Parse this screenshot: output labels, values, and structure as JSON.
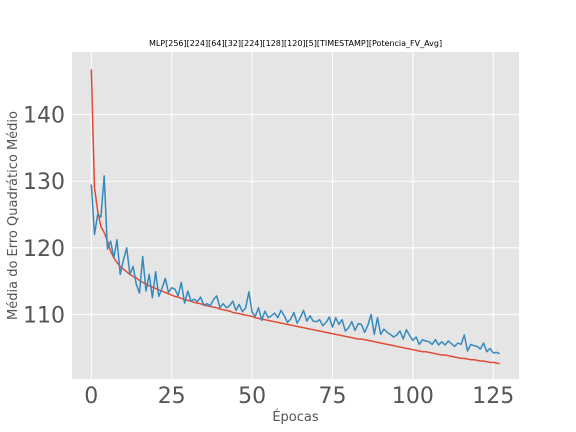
{
  "chart_data": {
    "type": "line",
    "title": "MLP[256][224][64][32][224][128][120][5][TIMESTAMP][Potencia_FV_Avg]",
    "xlabel": "Épocas",
    "ylabel": "Média do Erro Quadrático Médio",
    "xlim": [
      -6,
      133
    ],
    "ylim": [
      100.3,
      149.4
    ],
    "xticks": [
      0,
      25,
      50,
      75,
      100,
      125
    ],
    "yticks": [
      110,
      120,
      130,
      140
    ],
    "grid": true,
    "legend": "none",
    "series": [
      {
        "color": "#E24A33",
        "x": [
          0,
          1,
          2,
          3,
          4,
          5,
          6,
          7,
          8,
          9,
          10,
          11,
          12,
          13,
          14,
          15,
          16,
          17,
          18,
          19,
          20,
          21,
          22,
          23,
          24,
          25,
          26,
          27,
          28,
          29,
          30,
          31,
          32,
          33,
          34,
          35,
          36,
          37,
          38,
          39,
          40,
          41,
          42,
          43,
          44,
          45,
          46,
          47,
          48,
          49,
          50,
          51,
          52,
          53,
          54,
          55,
          56,
          57,
          58,
          59,
          60,
          61,
          62,
          63,
          64,
          65,
          66,
          67,
          68,
          69,
          70,
          71,
          72,
          73,
          74,
          75,
          76,
          77,
          78,
          79,
          80,
          81,
          82,
          83,
          84,
          85,
          86,
          87,
          88,
          89,
          90,
          91,
          92,
          93,
          94,
          95,
          96,
          97,
          98,
          99,
          100,
          101,
          102,
          103,
          104,
          105,
          106,
          107,
          108,
          109,
          110,
          111,
          112,
          113,
          114,
          115,
          116,
          117,
          118,
          119,
          120,
          121,
          122,
          123,
          124,
          125,
          126,
          127
        ],
        "values": [
          146.8,
          129.0,
          125.5,
          123.2,
          122.3,
          121.0,
          119.5,
          118.5,
          117.8,
          117.2,
          116.8,
          116.4,
          116.0,
          115.7,
          115.5,
          115.1,
          114.8,
          114.6,
          114.3,
          114.1,
          113.9,
          113.7,
          113.5,
          113.3,
          113.1,
          112.9,
          112.7,
          112.6,
          112.4,
          112.2,
          112.1,
          112.0,
          111.8,
          111.7,
          111.6,
          111.4,
          111.3,
          111.2,
          111.1,
          111.0,
          110.8,
          110.7,
          110.6,
          110.5,
          110.3,
          110.2,
          110.1,
          110.0,
          109.9,
          109.8,
          109.7,
          109.5,
          109.4,
          109.3,
          109.2,
          109.1,
          109.0,
          108.9,
          108.8,
          108.7,
          108.6,
          108.5,
          108.4,
          108.3,
          108.2,
          108.1,
          108.0,
          107.9,
          107.8,
          107.7,
          107.6,
          107.5,
          107.4,
          107.3,
          107.2,
          107.1,
          107.0,
          106.9,
          106.8,
          106.7,
          106.6,
          106.5,
          106.4,
          106.3,
          106.3,
          106.2,
          106.1,
          106.0,
          105.9,
          105.8,
          105.7,
          105.6,
          105.5,
          105.4,
          105.3,
          105.2,
          105.1,
          105.0,
          104.9,
          104.8,
          104.7,
          104.6,
          104.5,
          104.4,
          104.4,
          104.3,
          104.2,
          104.1,
          104.0,
          103.9,
          103.9,
          103.8,
          103.7,
          103.6,
          103.5,
          103.4,
          103.4,
          103.3,
          103.2,
          103.2,
          103.1,
          103.0,
          103.0,
          102.9,
          102.8,
          102.8,
          102.7,
          102.6
        ]
      },
      {
        "color": "#348ABD",
        "x": [
          0,
          1,
          2,
          3,
          4,
          5,
          6,
          7,
          8,
          9,
          10,
          11,
          12,
          13,
          14,
          15,
          16,
          17,
          18,
          19,
          20,
          21,
          22,
          23,
          24,
          25,
          26,
          27,
          28,
          29,
          30,
          31,
          32,
          33,
          34,
          35,
          36,
          37,
          38,
          39,
          40,
          41,
          42,
          43,
          44,
          45,
          46,
          47,
          48,
          49,
          50,
          51,
          52,
          53,
          54,
          55,
          56,
          57,
          58,
          59,
          60,
          61,
          62,
          63,
          64,
          65,
          66,
          67,
          68,
          69,
          70,
          71,
          72,
          73,
          74,
          75,
          76,
          77,
          78,
          79,
          80,
          81,
          82,
          83,
          84,
          85,
          86,
          87,
          88,
          89,
          90,
          91,
          92,
          93,
          94,
          95,
          96,
          97,
          98,
          99,
          100,
          101,
          102,
          103,
          104,
          105,
          106,
          107,
          108,
          109,
          110,
          111,
          112,
          113,
          114,
          115,
          116,
          117,
          118,
          119,
          120,
          121,
          122,
          123,
          124,
          125,
          126,
          127
        ],
        "values": [
          129.5,
          122.0,
          125.0,
          124.6,
          130.8,
          119.8,
          121.0,
          118.5,
          121.2,
          116.0,
          118.2,
          120.0,
          116.0,
          117.2,
          114.5,
          113.2,
          118.7,
          113.5,
          116.0,
          112.5,
          116.4,
          112.7,
          113.9,
          115.4,
          113.3,
          114.0,
          113.8,
          112.8,
          114.8,
          111.7,
          113.5,
          112.0,
          112.3,
          111.9,
          112.6,
          111.4,
          111.6,
          111.3,
          112.2,
          112.8,
          111.0,
          111.6,
          111.0,
          111.3,
          112.0,
          110.6,
          111.5,
          110.4,
          111.0,
          113.4,
          110.3,
          109.7,
          111.0,
          109.1,
          110.5,
          109.5,
          109.8,
          110.2,
          109.5,
          110.6,
          109.8,
          108.8,
          109.3,
          110.3,
          108.7,
          109.5,
          110.6,
          109.0,
          109.8,
          109.0,
          108.9,
          109.2,
          108.3,
          108.8,
          109.6,
          108.1,
          109.5,
          108.5,
          109.2,
          107.5,
          108.0,
          108.9,
          107.6,
          108.6,
          108.5,
          107.3,
          108.4,
          110.0,
          107.0,
          109.5,
          107.0,
          107.8,
          107.3,
          107.0,
          106.6,
          106.9,
          107.5,
          106.3,
          107.7,
          106.8,
          106.1,
          106.6,
          105.5,
          106.2,
          106.0,
          105.9,
          105.5,
          106.2,
          105.4,
          105.9,
          105.4,
          106.0,
          105.6,
          105.2,
          105.7,
          105.5,
          106.9,
          104.5,
          105.5,
          105.3,
          105.2,
          104.8,
          105.7,
          104.4,
          104.9,
          104.2,
          104.3,
          104.1
        ]
      }
    ]
  }
}
